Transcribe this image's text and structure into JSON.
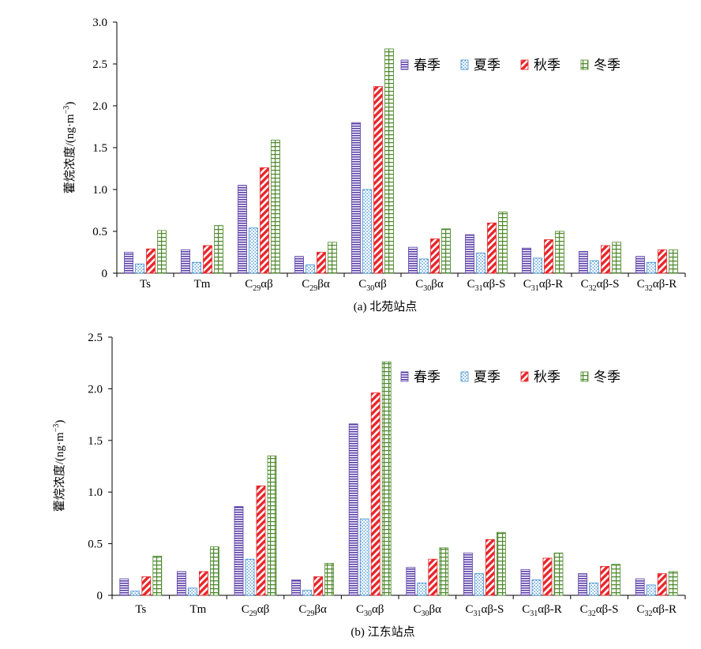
{
  "seasons": [
    {
      "key": "spring",
      "name": "春季",
      "color": "#5b3fa8",
      "pattern": "hstripe"
    },
    {
      "key": "summer",
      "name": "夏季",
      "color": "#3f8fd4",
      "pattern": "dots"
    },
    {
      "key": "autumn",
      "name": "秋季",
      "color": "#e8252a",
      "pattern": "diag"
    },
    {
      "key": "winter",
      "name": "冬季",
      "color": "#4f8a2e",
      "pattern": "grid"
    }
  ],
  "categories": [
    {
      "main": "Ts",
      "sub": "",
      "suffix": ""
    },
    {
      "main": "Tm",
      "sub": "",
      "suffix": ""
    },
    {
      "main": "C",
      "sub": "29",
      "suffix": "αβ"
    },
    {
      "main": "C",
      "sub": "29",
      "suffix": "βα"
    },
    {
      "main": "C",
      "sub": "30",
      "suffix": "αβ"
    },
    {
      "main": "C",
      "sub": "30",
      "suffix": "βα"
    },
    {
      "main": "C",
      "sub": "31",
      "suffix": "αβ-S"
    },
    {
      "main": "C",
      "sub": "31",
      "suffix": "αβ-R"
    },
    {
      "main": "C",
      "sub": "32",
      "suffix": "αβ-S"
    },
    {
      "main": "C",
      "sub": "32",
      "suffix": "αβ-R"
    }
  ],
  "chart_data": [
    {
      "type": "bar",
      "caption": "(a) 北苑站点",
      "ylabel": "藿烷浓度/(ng·m",
      "ylabel_sup": "−3",
      "ylabel_close": ")",
      "ylim": [
        0,
        3.0
      ],
      "yticks": [
        "0",
        "0.5",
        "1.0",
        "1.5",
        "2.0",
        "2.5",
        "3.0"
      ],
      "ytick_values": [
        0,
        0.5,
        1.0,
        1.5,
        2.0,
        2.5,
        3.0
      ],
      "legend_position": "top-right",
      "series": [
        {
          "name": "春季",
          "values": [
            0.25,
            0.28,
            1.05,
            0.2,
            1.8,
            0.31,
            0.46,
            0.3,
            0.26,
            0.2
          ]
        },
        {
          "name": "夏季",
          "values": [
            0.11,
            0.13,
            0.54,
            0.1,
            1.0,
            0.17,
            0.24,
            0.18,
            0.15,
            0.13
          ]
        },
        {
          "name": "秋季",
          "values": [
            0.29,
            0.33,
            1.26,
            0.25,
            2.23,
            0.41,
            0.6,
            0.4,
            0.33,
            0.28
          ]
        },
        {
          "name": "冬季",
          "values": [
            0.51,
            0.57,
            1.59,
            0.37,
            2.68,
            0.53,
            0.73,
            0.5,
            0.37,
            0.28
          ]
        }
      ]
    },
    {
      "type": "bar",
      "caption": "(b) 江东站点",
      "ylabel": "藿烷浓度/(ng·m",
      "ylabel_sup": "−3",
      "ylabel_close": ")",
      "ylim": [
        0,
        2.5
      ],
      "yticks": [
        "0",
        "0.5",
        "1.0",
        "1.5",
        "2.0",
        "2.5"
      ],
      "ytick_values": [
        0,
        0.5,
        1.0,
        1.5,
        2.0,
        2.5
      ],
      "legend_position": "top-right",
      "series": [
        {
          "name": "春季",
          "values": [
            0.16,
            0.23,
            0.86,
            0.15,
            1.66,
            0.27,
            0.41,
            0.25,
            0.21,
            0.16
          ]
        },
        {
          "name": "夏季",
          "values": [
            0.04,
            0.07,
            0.35,
            0.05,
            0.74,
            0.12,
            0.21,
            0.15,
            0.12,
            0.1
          ]
        },
        {
          "name": "秋季",
          "values": [
            0.18,
            0.23,
            1.06,
            0.18,
            1.96,
            0.35,
            0.54,
            0.36,
            0.28,
            0.21
          ]
        },
        {
          "name": "冬季",
          "values": [
            0.38,
            0.47,
            1.35,
            0.31,
            2.26,
            0.46,
            0.61,
            0.41,
            0.3,
            0.23
          ]
        }
      ]
    }
  ]
}
